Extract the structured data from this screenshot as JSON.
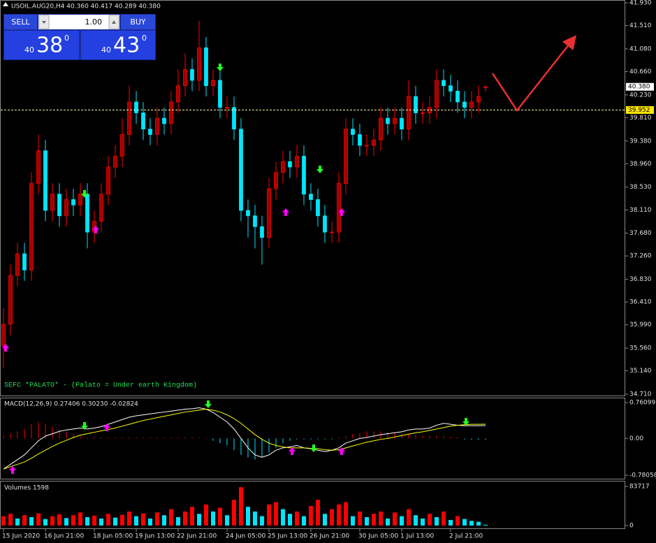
{
  "ui": {
    "sell": "SELL",
    "buy": "BUY",
    "lots": "1.00",
    "sell_prefix": "40",
    "sell_big": "38",
    "sell_sup": "0",
    "buy_prefix": "40",
    "buy_big": "43",
    "buy_sup": "0"
  },
  "chart_data": [
    {
      "type": "candlestick",
      "title": "USOIL.AUG20,H4  40.360 40.417 40.289 40.380",
      "annotation": "SEFC *PALATO* - (Palato = Under earth Kingdom)",
      "up_color": "#ff0000",
      "down_color": "#00e5ff",
      "categories": [
        "15 Jun 2020",
        null,
        null,
        null,
        null,
        null,
        "16 Jun 21:00",
        null,
        null,
        null,
        null,
        null,
        null,
        "18 Jun 05:00",
        null,
        null,
        null,
        null,
        null,
        "19 Jun 13:00",
        null,
        null,
        null,
        null,
        null,
        "22 Jun 21:00",
        null,
        null,
        null,
        null,
        null,
        null,
        "24 Jun 05:00",
        null,
        null,
        null,
        null,
        null,
        "25 Jun 13:00",
        null,
        null,
        null,
        null,
        null,
        "26 Jun 21:00",
        null,
        null,
        null,
        null,
        null,
        null,
        "30 Jun 05:00",
        null,
        null,
        null,
        null,
        null,
        "1 Jul 13:00",
        null,
        null,
        null,
        null,
        null,
        null,
        "2 Jul 21:00",
        null,
        null,
        null,
        null,
        null
      ],
      "open": [
        35.6,
        36.0,
        36.9,
        37.3,
        37.0,
        38.6,
        39.2,
        38.1,
        38.4,
        38.0,
        38.3,
        38.2,
        38.4,
        37.7,
        37.9,
        38.4,
        38.9,
        39.1,
        39.5,
        40.1,
        39.9,
        39.6,
        39.5,
        39.8,
        39.7,
        40.1,
        40.4,
        40.7,
        40.5,
        41.1,
        40.4,
        40.5,
        40.0,
        40.0,
        39.6,
        38.1,
        38.0,
        37.8,
        37.6,
        38.5,
        38.8,
        39.0,
        38.9,
        39.1,
        38.4,
        38.3,
        38.0,
        37.7,
        37.7,
        38.6,
        39.6,
        39.5,
        39.3,
        39.3,
        39.4,
        39.8,
        39.7,
        39.8,
        39.6,
        40.2,
        39.9,
        39.9,
        40.0,
        40.5,
        40.4,
        40.3,
        40.1,
        40.0,
        40.1,
        40.36
      ],
      "high": [
        36.3,
        37.1,
        37.5,
        37.5,
        38.8,
        39.5,
        39.4,
        38.6,
        38.6,
        38.5,
        38.5,
        38.6,
        38.6,
        38.1,
        38.6,
        39.1,
        39.3,
        39.8,
        40.4,
        40.3,
        40.1,
        39.8,
        40.0,
        40.0,
        40.3,
        40.7,
        41.0,
        40.9,
        41.6,
        41.3,
        40.7,
        40.7,
        40.2,
        40.2,
        39.8,
        38.3,
        38.2,
        38.0,
        38.7,
        39.0,
        39.2,
        39.2,
        39.3,
        39.3,
        38.6,
        38.5,
        38.2,
        37.9,
        38.8,
        39.8,
        39.8,
        39.7,
        39.5,
        39.6,
        40.0,
        40.0,
        40.0,
        40.0,
        40.5,
        40.4,
        40.1,
        40.2,
        40.7,
        40.7,
        40.6,
        40.5,
        40.3,
        40.3,
        40.4,
        40.417
      ],
      "low": [
        35.2,
        35.8,
        36.7,
        36.8,
        36.8,
        38.4,
        37.9,
        37.9,
        37.8,
        37.8,
        38.0,
        38.0,
        37.4,
        37.5,
        37.7,
        38.2,
        38.7,
        38.9,
        39.3,
        39.7,
        39.4,
        39.3,
        39.3,
        39.5,
        39.5,
        39.9,
        40.2,
        40.3,
        40.3,
        40.2,
        40.2,
        39.8,
        39.8,
        39.4,
        37.9,
        37.6,
        37.4,
        37.1,
        37.4,
        38.3,
        38.6,
        38.7,
        38.7,
        38.2,
        38.1,
        37.8,
        37.5,
        37.5,
        37.5,
        38.4,
        39.3,
        39.1,
        39.1,
        39.1,
        39.2,
        39.5,
        39.5,
        39.4,
        39.4,
        39.7,
        39.7,
        39.7,
        39.8,
        40.2,
        40.1,
        39.9,
        39.8,
        39.8,
        39.9,
        40.289
      ],
      "close": [
        36.0,
        36.9,
        37.3,
        37.0,
        38.6,
        39.2,
        38.1,
        38.4,
        38.0,
        38.3,
        38.2,
        38.4,
        37.7,
        37.9,
        38.4,
        38.9,
        39.1,
        39.5,
        40.1,
        39.9,
        39.6,
        39.5,
        39.8,
        39.7,
        40.1,
        40.4,
        40.7,
        40.5,
        41.1,
        40.4,
        40.5,
        40.0,
        40.0,
        39.6,
        38.1,
        38.0,
        37.8,
        37.6,
        38.5,
        38.8,
        39.0,
        38.9,
        39.1,
        38.4,
        38.3,
        38.0,
        37.7,
        37.7,
        38.6,
        39.6,
        39.5,
        39.3,
        39.3,
        39.4,
        39.8,
        39.7,
        39.8,
        39.6,
        40.2,
        39.9,
        39.9,
        40.0,
        40.5,
        40.4,
        40.3,
        40.1,
        40.0,
        40.1,
        40.2,
        40.38
      ],
      "ylim": [
        34.71,
        41.93
      ],
      "yticks": [
        {
          "value": 41.93,
          "label": "41.930"
        },
        {
          "value": 41.51,
          "label": "41.510"
        },
        {
          "value": 41.08,
          "label": "41.080"
        },
        {
          "value": 40.66,
          "label": "40.660"
        },
        {
          "value": 40.23,
          "label": "40.230"
        },
        {
          "value": 39.81,
          "label": "39.810"
        },
        {
          "value": 39.38,
          "label": "39.380"
        },
        {
          "value": 38.96,
          "label": "38.960"
        },
        {
          "value": 38.53,
          "label": "38.530"
        },
        {
          "value": 38.11,
          "label": "38.110"
        },
        {
          "value": 37.68,
          "label": "37.680"
        },
        {
          "value": 37.26,
          "label": "37.260"
        },
        {
          "value": 36.83,
          "label": "36.830"
        },
        {
          "value": 36.41,
          "label": "36.410"
        },
        {
          "value": 35.99,
          "label": "35.990"
        },
        {
          "value": 35.56,
          "label": "35.560"
        },
        {
          "value": 35.14,
          "label": "35.140"
        },
        {
          "value": 34.71,
          "label": "34.710"
        }
      ],
      "current": {
        "value": 40.38,
        "label": "40.380"
      },
      "level": {
        "value": 39.952,
        "label": "39.952"
      }
    },
    {
      "type": "combo",
      "title": "MACD(12,26,9) 0.27406 0.30230 -0.02824",
      "series": [
        {
          "type": "bar",
          "up_color": "#ff0000",
          "down_color": "#00e5ff",
          "values": [
            0.05,
            0.1,
            0.15,
            0.2,
            0.3,
            0.35,
            0.3,
            0.25,
            0.2,
            0.15,
            0.1,
            0.05,
            0.02,
            0.02,
            0.02,
            0.02,
            0.02,
            0.02,
            0.02,
            0.02,
            0.02,
            0.02,
            0.02,
            0.02,
            0.02,
            0.02,
            0.02,
            0.02,
            0.02,
            0.01,
            -0.05,
            -0.1,
            -0.15,
            -0.25,
            -0.35,
            -0.4,
            -0.45,
            -0.4,
            -0.3,
            -0.2,
            -0.1,
            -0.05,
            -0.02,
            -0.02,
            -0.02,
            -0.02,
            -0.02,
            -0.02,
            0.02,
            0.05,
            0.1,
            0.12,
            0.15,
            0.15,
            0.15,
            0.13,
            0.12,
            0.1,
            0.1,
            0.08,
            0.06,
            0.06,
            0.06,
            0.05,
            0.04,
            0.03,
            -0.02,
            -0.03,
            -0.03,
            -0.02824
          ]
        },
        {
          "type": "line",
          "color": "#ffffff",
          "values": [
            -0.65,
            -0.55,
            -0.45,
            -0.35,
            -0.2,
            -0.05,
            0.05,
            0.1,
            0.15,
            0.18,
            0.2,
            0.22,
            0.2,
            0.22,
            0.25,
            0.3,
            0.35,
            0.4,
            0.45,
            0.48,
            0.5,
            0.52,
            0.54,
            0.56,
            0.58,
            0.6,
            0.62,
            0.63,
            0.65,
            0.62,
            0.55,
            0.45,
            0.35,
            0.2,
            0.0,
            -0.2,
            -0.35,
            -0.4,
            -0.35,
            -0.25,
            -0.2,
            -0.18,
            -0.15,
            -0.2,
            -0.22,
            -0.25,
            -0.28,
            -0.25,
            -0.2,
            -0.1,
            -0.05,
            0.0,
            0.02,
            0.05,
            0.08,
            0.1,
            0.12,
            0.14,
            0.18,
            0.2,
            0.2,
            0.22,
            0.28,
            0.32,
            0.3,
            0.28,
            0.27,
            0.27,
            0.27,
            0.27406
          ]
        },
        {
          "type": "line",
          "color": "#ffff00",
          "values": [
            -0.65,
            -0.6,
            -0.55,
            -0.5,
            -0.42,
            -0.33,
            -0.25,
            -0.17,
            -0.1,
            -0.04,
            0.02,
            0.07,
            0.1,
            0.13,
            0.16,
            0.19,
            0.22,
            0.26,
            0.3,
            0.34,
            0.38,
            0.41,
            0.44,
            0.47,
            0.5,
            0.53,
            0.56,
            0.58,
            0.6,
            0.62,
            0.6,
            0.56,
            0.5,
            0.42,
            0.32,
            0.2,
            0.08,
            -0.02,
            -0.1,
            -0.15,
            -0.18,
            -0.2,
            -0.2,
            -0.2,
            -0.21,
            -0.22,
            -0.24,
            -0.25,
            -0.24,
            -0.2,
            -0.16,
            -0.12,
            -0.08,
            -0.05,
            -0.02,
            0.0,
            0.03,
            0.06,
            0.09,
            0.12,
            0.14,
            0.17,
            0.2,
            0.23,
            0.26,
            0.28,
            0.29,
            0.3,
            0.3,
            0.3023
          ]
        }
      ],
      "ylim": [
        -0.78058,
        0.76099
      ],
      "yticks": [
        0.76099,
        {
          "value": 0,
          "label": "0.00"
        },
        -0.78058
      ]
    },
    {
      "type": "bar",
      "title": "Volumes 1598",
      "up_color": "#ff0000",
      "down_color": "#00e5ff",
      "values": [
        20000,
        25000,
        15000,
        22000,
        18000,
        26000,
        14000,
        20000,
        24000,
        16000,
        22000,
        28000,
        18000,
        21000,
        15000,
        25000,
        17000,
        23000,
        30000,
        20000,
        26000,
        15000,
        28000,
        22000,
        35000,
        18000,
        30000,
        40000,
        25000,
        45000,
        30000,
        38000,
        22000,
        55000,
        82000,
        40000,
        30000,
        20000,
        45000,
        50000,
        35000,
        25000,
        30000,
        20000,
        42000,
        55000,
        25000,
        35000,
        45000,
        50000,
        20000,
        30000,
        18000,
        25000,
        30000,
        15000,
        28000,
        20000,
        35000,
        22000,
        15000,
        25000,
        18000,
        30000,
        12000,
        20000,
        14000,
        10000,
        8000,
        1598
      ],
      "ylim": [
        0,
        83717
      ],
      "yticks": [
        83717,
        0
      ]
    }
  ]
}
